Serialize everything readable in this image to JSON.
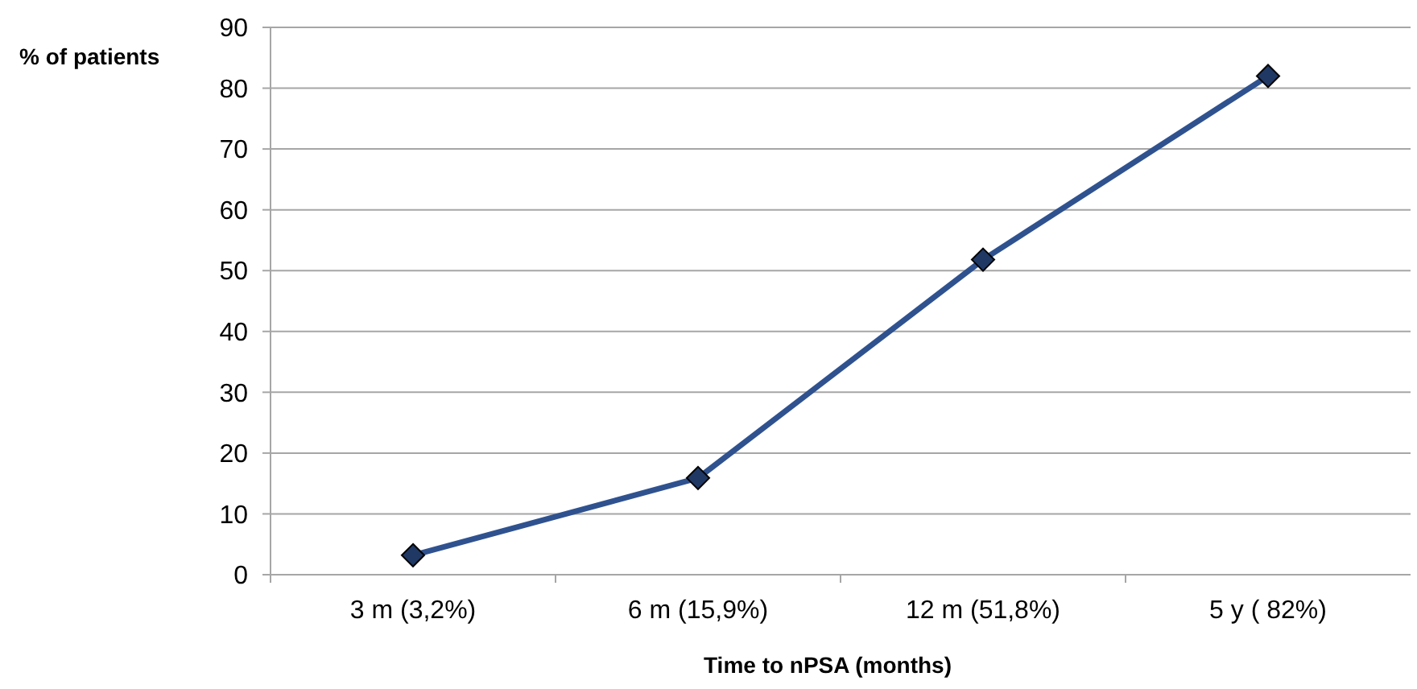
{
  "chart_data": {
    "type": "line",
    "xlabel": "Time to nPSA (months)",
    "ylabel": "% of patients",
    "categories": [
      "3 m (3,2%)",
      "6 m (15,9%)",
      "12 m (51,8%)",
      "5 y ( 82%)"
    ],
    "series": [
      {
        "color": "#2f528f",
        "values": [
          3.2,
          15.9,
          51.8,
          82
        ]
      }
    ],
    "ylim": [
      0,
      90
    ],
    "yticks": [
      0,
      10,
      20,
      30,
      40,
      50,
      60,
      70,
      80,
      90
    ],
    "grid": "y",
    "marker": "diamond",
    "line_style": "solid"
  }
}
